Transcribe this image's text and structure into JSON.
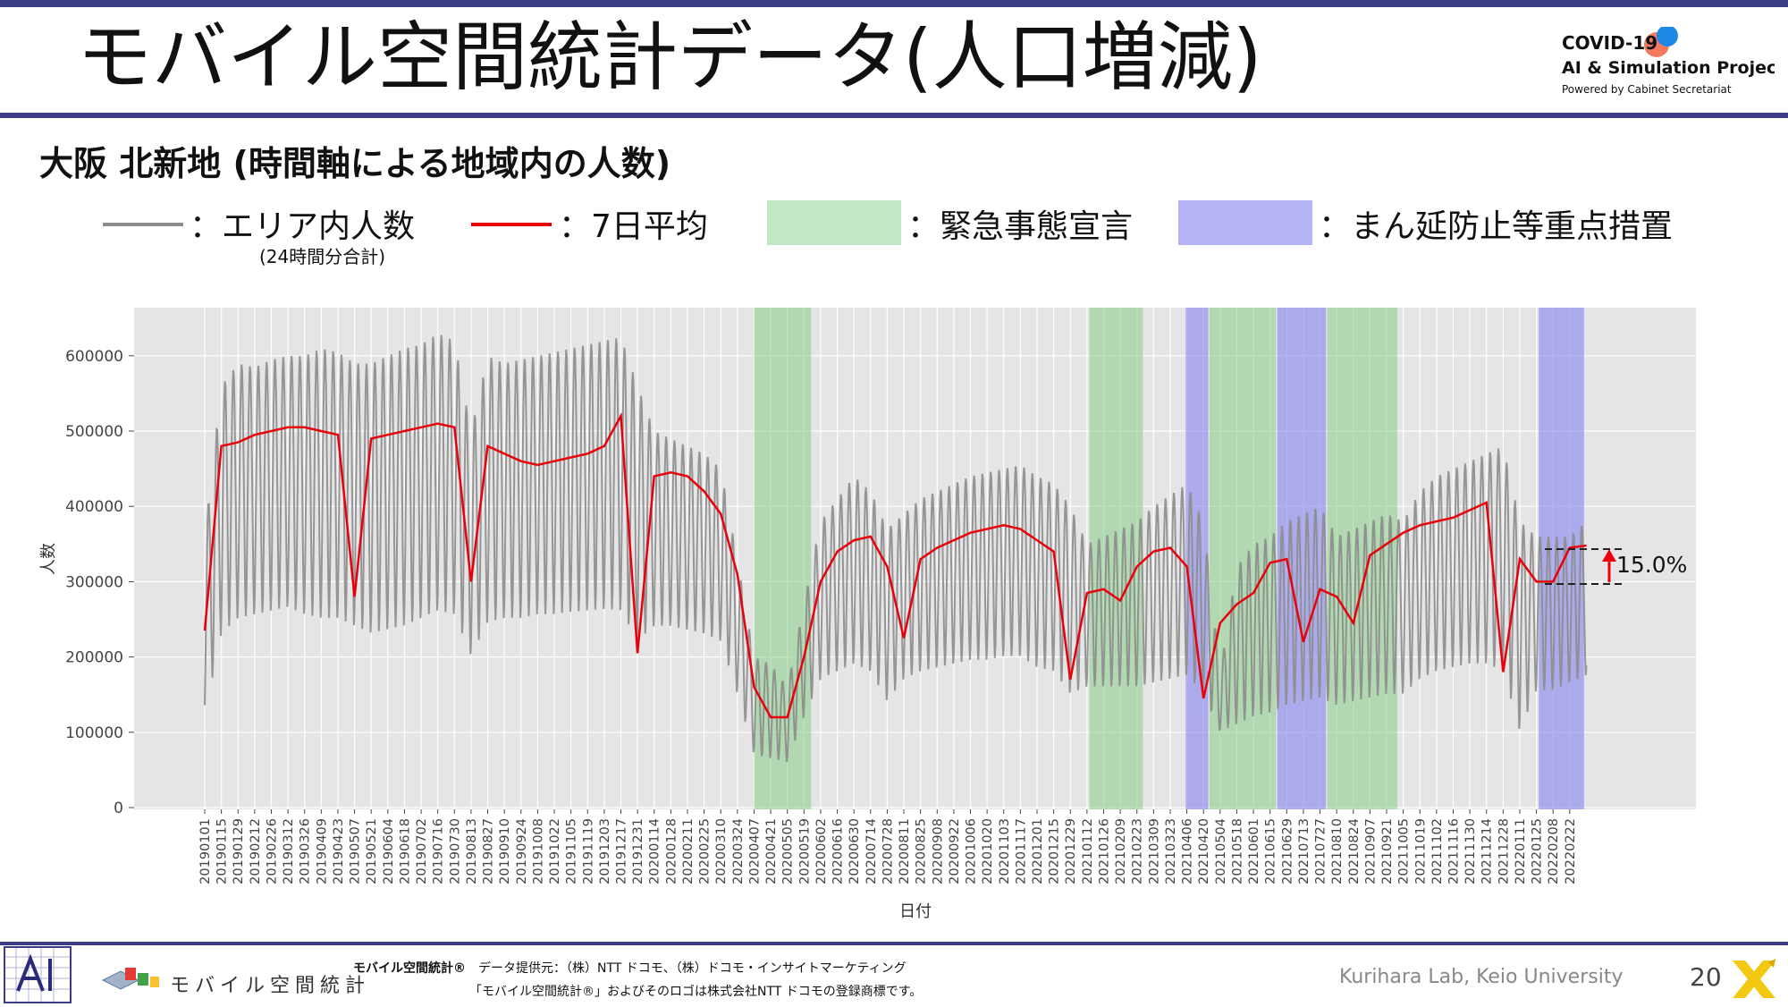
{
  "header": {
    "title": "モバイル空間統計データ(人口増減)",
    "logo": {
      "line1": "COVID-19",
      "line2": "AI & Simulation Project",
      "line3": "Powered by Cabinet Secretariat",
      "colors": {
        "orange": "#f26b4f",
        "blue": "#1e88e5"
      }
    }
  },
  "subtitle": "大阪 北新地 (時間軸による地域内の人数)",
  "legend": {
    "gray_label": "：エリア内人数",
    "gray_sub": "(24時間分合計)",
    "red_label": "：7日平均",
    "green_label": "：緊急事態宣言",
    "purple_label": "：まん延防止等重点措置",
    "colors": {
      "gray": "#8c8c8c",
      "red": "#e8000b",
      "green": "#c4e8c6",
      "purple": "#b4b4f5"
    }
  },
  "chart_data": {
    "type": "line",
    "xlabel": "日付",
    "ylabel": "人数",
    "ylim": [
      0,
      650000
    ],
    "yticks": [
      "0",
      "100000",
      "200000",
      "300000",
      "400000",
      "500000",
      "600000"
    ],
    "x_ticks": [
      "20190101",
      "20190115",
      "20190129",
      "20190212",
      "20190226",
      "20190312",
      "20190326",
      "20190409",
      "20190423",
      "20190507",
      "20190521",
      "20190604",
      "20190618",
      "20190702",
      "20190716",
      "20190730",
      "20190813",
      "20190827",
      "20190910",
      "20190924",
      "20191008",
      "20191022",
      "20191105",
      "20191119",
      "20191203",
      "20191217",
      "20191231",
      "20200114",
      "20200128",
      "20200211",
      "20200225",
      "20200310",
      "20200324",
      "20200407",
      "20200421",
      "20200505",
      "20200519",
      "20200602",
      "20200616",
      "20200630",
      "20200714",
      "20200728",
      "20200811",
      "20200825",
      "20200908",
      "20200922",
      "20201006",
      "20201020",
      "20201103",
      "20201117",
      "20201201",
      "20201215",
      "20201229",
      "20210112",
      "20210126",
      "20210209",
      "20210223",
      "20210309",
      "20210323",
      "20210406",
      "20210420",
      "20210504",
      "20210518",
      "20210601",
      "20210615",
      "20210629",
      "20210713",
      "20210727",
      "20210810",
      "20210824",
      "20210907",
      "20210921",
      "20211005",
      "20211019",
      "20211102",
      "20211116",
      "20211130",
      "20211214",
      "20211228",
      "20220111",
      "20220125",
      "20220208",
      "20220222"
    ],
    "series": [
      {
        "name": "エリア内人数",
        "color": "#8c8c8c",
        "envelope_biweekly": {
          "start": "20190101",
          "high": [
            360000,
            560000,
            590000,
            585000,
            595000,
            600000,
            600000,
            610000,
            605000,
            590000,
            590000,
            600000,
            610000,
            615000,
            630000,
            620000,
            500000,
            600000,
            590000,
            595000,
            600000,
            605000,
            610000,
            615000,
            620000,
            625000,
            560000,
            500000,
            490000,
            480000,
            470000,
            450000,
            330000,
            200000,
            190000,
            160000,
            270000,
            380000,
            410000,
            440000,
            420000,
            370000,
            390000,
            410000,
            420000,
            430000,
            440000,
            445000,
            450000,
            455000,
            440000,
            430000,
            400000,
            350000,
            360000,
            370000,
            380000,
            400000,
            415000,
            430000,
            380000,
            180000,
            320000,
            350000,
            360000,
            380000,
            390000,
            400000,
            360000,
            370000,
            380000,
            390000,
            380000,
            420000,
            440000,
            450000,
            460000,
            470000,
            480000,
            380000,
            360000,
            360000,
            360000,
            380000
          ],
          "low": [
            120000,
            230000,
            250000,
            255000,
            260000,
            265000,
            255000,
            250000,
            250000,
            240000,
            230000,
            235000,
            240000,
            250000,
            260000,
            255000,
            200000,
            245000,
            250000,
            250000,
            255000,
            255000,
            258000,
            260000,
            262000,
            260000,
            220000,
            240000,
            240000,
            235000,
            230000,
            220000,
            150000,
            70000,
            65000,
            60000,
            120000,
            170000,
            180000,
            190000,
            180000,
            140000,
            170000,
            180000,
            185000,
            190000,
            195000,
            195000,
            200000,
            200000,
            185000,
            180000,
            150000,
            160000,
            160000,
            160000,
            160000,
            165000,
            170000,
            175000,
            150000,
            100000,
            110000,
            120000,
            125000,
            135000,
            140000,
            145000,
            135000,
            140000,
            145000,
            150000,
            150000,
            170000,
            180000,
            185000,
            190000,
            190000,
            180000,
            100000,
            155000,
            155000,
            165000,
            175000
          ]
        }
      },
      {
        "name": "7日平均",
        "color": "#e8000b",
        "values_biweekly": {
          "start": "20190101",
          "values": [
            235000,
            480000,
            485000,
            495000,
            500000,
            505000,
            505000,
            500000,
            495000,
            280000,
            490000,
            495000,
            500000,
            505000,
            510000,
            505000,
            300000,
            480000,
            470000,
            460000,
            455000,
            460000,
            465000,
            470000,
            480000,
            520000,
            205000,
            440000,
            445000,
            440000,
            420000,
            390000,
            310000,
            160000,
            120000,
            120000,
            200000,
            300000,
            340000,
            355000,
            360000,
            320000,
            225000,
            330000,
            345000,
            355000,
            365000,
            370000,
            375000,
            370000,
            355000,
            340000,
            170000,
            285000,
            290000,
            275000,
            320000,
            340000,
            345000,
            320000,
            145000,
            245000,
            270000,
            285000,
            325000,
            330000,
            220000,
            290000,
            280000,
            245000,
            335000,
            350000,
            365000,
            375000,
            380000,
            385000,
            395000,
            405000,
            180000,
            330000,
            300000,
            300000,
            345000,
            348000
          ],
          "annotation": "15.0%"
        }
      }
    ],
    "shaded_periods": [
      {
        "type": "緊急事態宣言",
        "start": "20200407",
        "end": "20200525"
      },
      {
        "type": "緊急事態宣言",
        "start": "20210114",
        "end": "20210228"
      },
      {
        "type": "まん延防止等重点措置",
        "start": "20210405",
        "end": "20210424"
      },
      {
        "type": "緊急事態宣言",
        "start": "20210425",
        "end": "20210620"
      },
      {
        "type": "まん延防止等重点措置",
        "start": "20210621",
        "end": "20210801"
      },
      {
        "type": "緊急事態宣言",
        "start": "20210802",
        "end": "20210930"
      },
      {
        "type": "まん延防止等重点措置",
        "start": "20220127",
        "end": "20220306"
      }
    ],
    "grid": true,
    "background": "#e5e5e5"
  },
  "footer": {
    "brand_text": "モバイル空間統計",
    "note_bold": "モバイル空間統計®",
    "note1": "データ提供元：（株）NTT ドコモ、（株）ドコモ・インサイトマーケティング",
    "note2": "「モバイル空間統計®」およびそのロゴは株式会社NTT ドコモの登録商標です。",
    "lab": "Kurihara Lab, Keio University",
    "page": "20",
    "colors": {
      "x_logo": "#f2c811"
    }
  }
}
